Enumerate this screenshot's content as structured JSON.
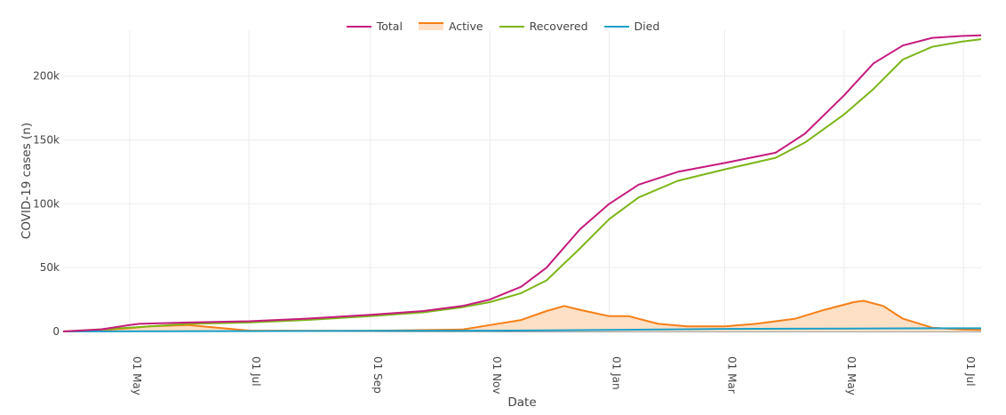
{
  "chart_data": {
    "type": "line",
    "title": "",
    "xlabel": "Date",
    "ylabel": "COVID-19 cases (n)",
    "x_range_days": [
      -34,
      435
    ],
    "ylim": [
      0,
      236000
    ],
    "yticks": [
      0,
      50000,
      100000,
      150000,
      200000
    ],
    "ytick_labels": [
      "0",
      "50k",
      "100k",
      "150k",
      "200k"
    ],
    "xticks_days": [
      0,
      61,
      123,
      184,
      245,
      304,
      365,
      426
    ],
    "xtick_labels": [
      "01 May",
      "01 Jul",
      "01 Sep",
      "01 Nov",
      "01 Jan",
      "01 Mar",
      "01 May",
      "01 Jul"
    ],
    "x_origin_date": "2020-05-01",
    "grid": true,
    "legend_position": "top-center",
    "series": [
      {
        "name": "Total",
        "color": "#c51b7d",
        "fill": false,
        "points": [
          [
            -34,
            0
          ],
          [
            -15,
            1500
          ],
          [
            0,
            5000
          ],
          [
            5,
            6000
          ],
          [
            30,
            7000
          ],
          [
            61,
            8000
          ],
          [
            90,
            10000
          ],
          [
            123,
            13000
          ],
          [
            150,
            16000
          ],
          [
            170,
            20000
          ],
          [
            184,
            25000
          ],
          [
            200,
            35000
          ],
          [
            213,
            50000
          ],
          [
            230,
            80000
          ],
          [
            245,
            100000
          ],
          [
            260,
            115000
          ],
          [
            280,
            125000
          ],
          [
            304,
            132000
          ],
          [
            330,
            140000
          ],
          [
            345,
            155000
          ],
          [
            365,
            185000
          ],
          [
            380,
            210000
          ],
          [
            395,
            224000
          ],
          [
            410,
            230000
          ],
          [
            425,
            231500
          ],
          [
            435,
            232000
          ]
        ]
      },
      {
        "name": "Active",
        "color": "#f57f17",
        "fill": true,
        "fill_color": "#fde0c5",
        "points": [
          [
            -34,
            0
          ],
          [
            -15,
            1000
          ],
          [
            0,
            2500
          ],
          [
            10,
            4000
          ],
          [
            30,
            5000
          ],
          [
            61,
            700
          ],
          [
            123,
            500
          ],
          [
            170,
            1500
          ],
          [
            184,
            5000
          ],
          [
            200,
            9000
          ],
          [
            213,
            16000
          ],
          [
            222,
            20000
          ],
          [
            230,
            17000
          ],
          [
            245,
            12000
          ],
          [
            255,
            12000
          ],
          [
            270,
            6000
          ],
          [
            285,
            4000
          ],
          [
            304,
            4000
          ],
          [
            320,
            6000
          ],
          [
            340,
            10000
          ],
          [
            355,
            17000
          ],
          [
            370,
            23000
          ],
          [
            375,
            24000
          ],
          [
            385,
            20000
          ],
          [
            395,
            10000
          ],
          [
            410,
            3000
          ],
          [
            425,
            1500
          ],
          [
            435,
            1200
          ]
        ]
      },
      {
        "name": "Recovered",
        "color": "#7cb518",
        "fill": false,
        "points": [
          [
            -34,
            0
          ],
          [
            0,
            3000
          ],
          [
            30,
            6000
          ],
          [
            61,
            7000
          ],
          [
            90,
            9000
          ],
          [
            123,
            12000
          ],
          [
            150,
            15000
          ],
          [
            170,
            19000
          ],
          [
            184,
            23000
          ],
          [
            200,
            30000
          ],
          [
            213,
            40000
          ],
          [
            230,
            65000
          ],
          [
            245,
            88000
          ],
          [
            260,
            105000
          ],
          [
            280,
            118000
          ],
          [
            304,
            127000
          ],
          [
            330,
            136000
          ],
          [
            345,
            148000
          ],
          [
            365,
            170000
          ],
          [
            380,
            190000
          ],
          [
            395,
            213000
          ],
          [
            410,
            223000
          ],
          [
            425,
            227000
          ],
          [
            435,
            229000
          ]
        ]
      },
      {
        "name": "Died",
        "color": "#1a9fc7",
        "fill": false,
        "points": [
          [
            -34,
            0
          ],
          [
            61,
            300
          ],
          [
            123,
            500
          ],
          [
            184,
            600
          ],
          [
            245,
            1200
          ],
          [
            304,
            2000
          ],
          [
            365,
            2300
          ],
          [
            425,
            2500
          ],
          [
            435,
            2500
          ]
        ]
      }
    ]
  }
}
